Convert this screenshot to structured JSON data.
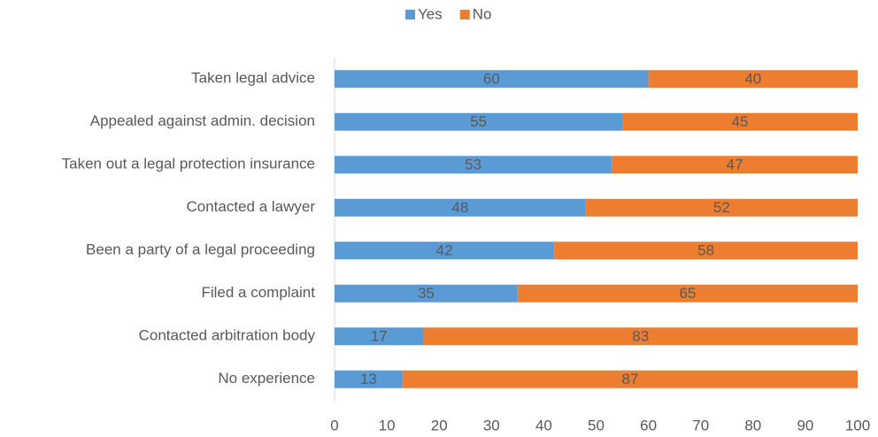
{
  "chart_data": {
    "type": "bar",
    "orientation": "horizontal",
    "stacked": true,
    "categories": [
      "Taken legal advice",
      "Appealed against admin. decision",
      "Taken out a legal protection insurance",
      "Contacted a lawyer",
      "Been a party of a legal proceeding",
      "Filed a complaint",
      "Contacted arbitration body",
      "No experience"
    ],
    "series": [
      {
        "name": "Yes",
        "color": "#5b9bd5",
        "values": [
          60,
          55,
          53,
          48,
          42,
          35,
          17,
          13
        ]
      },
      {
        "name": "No",
        "color": "#ed7d31",
        "values": [
          40,
          45,
          47,
          52,
          58,
          65,
          83,
          87
        ]
      }
    ],
    "xlim": [
      0,
      100
    ],
    "xticks": [
      0,
      10,
      20,
      30,
      40,
      50,
      60,
      70,
      80,
      90,
      100
    ],
    "grid": false,
    "legend": "top"
  }
}
